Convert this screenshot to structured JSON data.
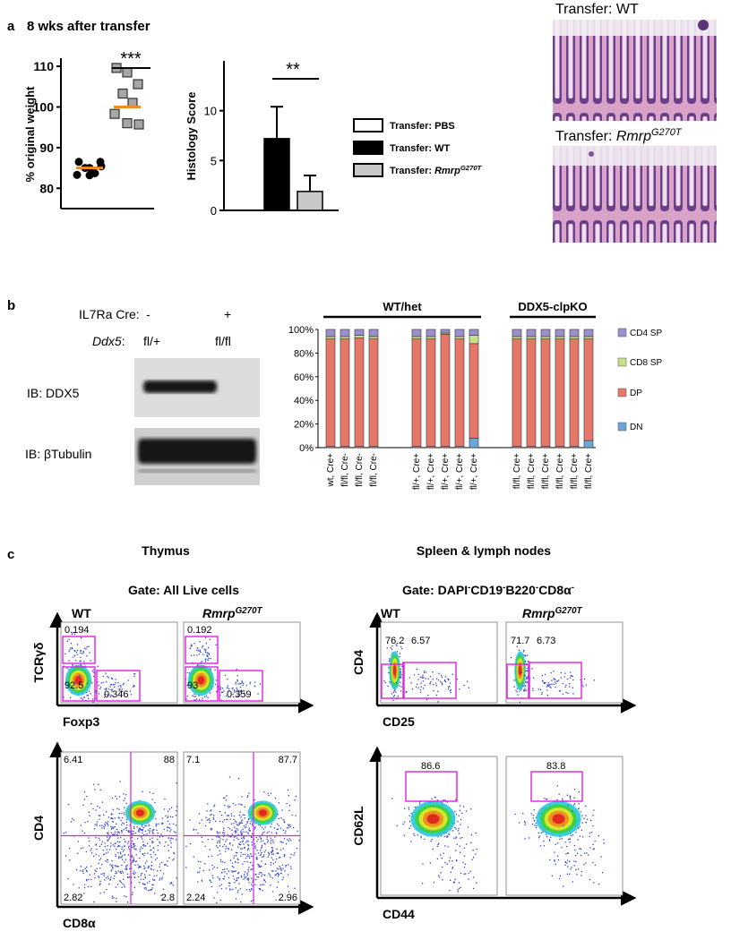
{
  "panel_labels": [
    "a",
    "b",
    "c"
  ],
  "chart_data": [
    {
      "type": "scatter",
      "title": "8 wks after transfer",
      "y_label": "% original weight",
      "ylim": [
        75,
        112
      ],
      "yticks": [
        80,
        90,
        100,
        110
      ],
      "annotation": "***",
      "series": [
        {
          "color": "#000000",
          "marker": "circle",
          "values": [
            86.5,
            85,
            86.5,
            85,
            83.7,
            83.3,
            83.2,
            85.4
          ],
          "median": 85,
          "median_color": "#f08a24"
        },
        {
          "color": "#a6a6a6",
          "marker": "square",
          "values": [
            109.6,
            108.5,
            105.6,
            103.3,
            101,
            98.3,
            96,
            95.7
          ],
          "median": 100,
          "median_color": "#f08a24"
        }
      ]
    },
    {
      "type": "bar",
      "y_label": "Histology Score",
      "ylim": [
        0,
        15
      ],
      "yticks": [
        0,
        5,
        10
      ],
      "annotation": "**",
      "series": [
        {
          "name": "Transfer: PBS",
          "color": "#ffffff",
          "values": [
            0
          ]
        },
        {
          "name": "Transfer: WT",
          "color": "#000000",
          "values": [
            7.2
          ],
          "errors": [
            3.2
          ]
        },
        {
          "name": "Transfer:",
          "name_italic": "Rmrp",
          "name_sup": "G270T",
          "color": "#c8c8c8",
          "values": [
            1.9
          ],
          "errors": [
            1.6
          ]
        }
      ]
    },
    {
      "type": "stacked_bar",
      "ylim": [
        0,
        100
      ],
      "yticks": [
        {
          "value": 0,
          "label": "0%"
        },
        {
          "value": 20,
          "label": "20%"
        },
        {
          "value": 40,
          "label": "40%"
        },
        {
          "value": 60,
          "label": "60%"
        },
        {
          "value": 80,
          "label": "80%"
        },
        {
          "value": 100,
          "label": "100%"
        }
      ],
      "groups": [
        "WT/het",
        "DDX5-clpKO"
      ],
      "categories": [
        "wt, Cre+",
        "fl/fl, Cre-",
        "fl/fl, Cre-",
        "fl/fl, Cre-",
        null,
        null,
        "fl/+, Cre+",
        "fl/+, Cre+",
        "fl/+, Cre+",
        "fl/+, Cre+",
        "fl/+, Cre+",
        null,
        null,
        "fl/fl, Cre+",
        "fl/fl, Cre+",
        "fl/fl, Cre+",
        "fl/fl, Cre+",
        "fl/fl, Cre+",
        "fl/fl, Cre+"
      ],
      "series": [
        {
          "name": "DN",
          "color": "#6aa6d8",
          "values": [
            1,
            1,
            1,
            1,
            null,
            null,
            1,
            1,
            1,
            1,
            8,
            null,
            null,
            1,
            1,
            1,
            1,
            1,
            6
          ]
        },
        {
          "name": "DP",
          "color": "#e8776b",
          "values": [
            91,
            91,
            92,
            91,
            null,
            null,
            91,
            91,
            95,
            91,
            80,
            null,
            null,
            91,
            91,
            91,
            91,
            91,
            86
          ]
        },
        {
          "name": "CD8 SP",
          "color": "#c8e08a",
          "values": [
            2,
            2,
            2,
            2,
            null,
            null,
            2,
            2,
            1,
            2,
            7,
            null,
            null,
            2,
            2,
            2,
            2,
            2,
            2
          ]
        },
        {
          "name": "CD4 SP",
          "color": "#9b8fd0",
          "values": [
            6,
            6,
            5,
            6,
            null,
            null,
            6,
            6,
            3,
            6,
            5,
            null,
            null,
            6,
            6,
            6,
            6,
            6,
            6
          ]
        }
      ]
    }
  ],
  "histology": [
    {
      "label": "Transfer: WT"
    },
    {
      "label": "Transfer:",
      "label_italic": "Rmrp",
      "label_sup": "G270T"
    }
  ],
  "blot": {
    "header_rows": [
      {
        "label": "IL7Ra Cre:",
        "lanes": [
          "-",
          "+"
        ]
      },
      {
        "label": "Ddx5",
        "suffix": ":",
        "lanes": [
          "fl/+",
          "fl/fl"
        ]
      }
    ],
    "rows": [
      "IB: DDX5",
      "IB: βTubulin"
    ]
  },
  "flow": {
    "sections": [
      {
        "title": "Thymus",
        "gate": [
          "Gate: All Live cells"
        ],
        "samples": [
          {
            "name": "WT"
          },
          {
            "name": "Rmrp",
            "name_sup": "G270T"
          }
        ],
        "rows": [
          {
            "x_label": "Foxp3",
            "y_label": "TCRγδ",
            "gates": [
              [
                "0.194",
                "92.5",
                "0.346"
              ],
              [
                "0.192",
                "93",
                "0.359"
              ]
            ]
          },
          {
            "x_label": "CD8α",
            "y_label": "CD4",
            "gates": [
              [
                "6.41",
                "88",
                "2.82",
                "2.8"
              ],
              [
                "7.1",
                "87.7",
                "2.24",
                "2.96"
              ]
            ]
          }
        ]
      },
      {
        "title": "Spleen & lymph nodes",
        "gate": [
          "Gate: DAPI",
          "-",
          "CD19",
          "-",
          "B220",
          "-",
          "CD8α",
          "-"
        ],
        "samples": [
          {
            "name": "WT"
          },
          {
            "name": "Rmrp",
            "name_sup": "G270T"
          }
        ],
        "rows": [
          {
            "x_label": "CD25",
            "y_label": "CD4",
            "gates": [
              [
                "76.2",
                "6.57"
              ],
              [
                "71.7",
                "6.73"
              ]
            ]
          },
          {
            "x_label": "CD44",
            "y_label": "CD62L",
            "gates": [
              [
                "86.6"
              ],
              [
                "83.8"
              ]
            ]
          }
        ]
      }
    ]
  }
}
